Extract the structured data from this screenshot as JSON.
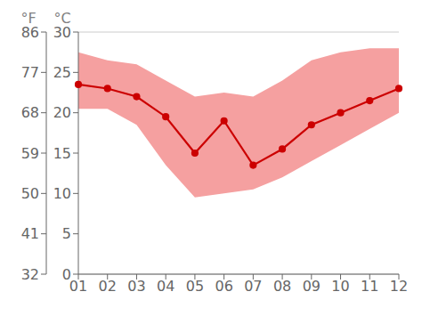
{
  "chart_data": {
    "type": "line",
    "categories": [
      "01",
      "02",
      "03",
      "04",
      "05",
      "06",
      "07",
      "08",
      "09",
      "10",
      "11",
      "12"
    ],
    "series": [
      {
        "type": "band",
        "color": "#f5a0a0",
        "low": [
          20.5,
          20.5,
          18.5,
          13.5,
          9.5,
          10.0,
          10.5,
          12.0,
          14.0,
          16.0,
          18.0,
          20.0
        ],
        "high": [
          27.5,
          26.5,
          26.0,
          24.0,
          22.0,
          22.5,
          22.0,
          24.0,
          26.5,
          27.5,
          28.0,
          28.0
        ]
      },
      {
        "type": "line",
        "color": "#cc0000",
        "marker": "circle",
        "values": [
          23.5,
          23.0,
          22.0,
          19.5,
          15.0,
          19.0,
          13.5,
          15.5,
          18.5,
          20.0,
          21.5,
          23.0
        ]
      }
    ],
    "ylabel": "°C",
    "ylim": [
      0,
      30
    ],
    "yticks": [
      0,
      5,
      10,
      15,
      20,
      25,
      30
    ],
    "y2label": "°F",
    "y2lim": [
      32,
      86
    ],
    "y2ticks": [
      32,
      41,
      50,
      59,
      68,
      77,
      86
    ],
    "grid": true
  }
}
